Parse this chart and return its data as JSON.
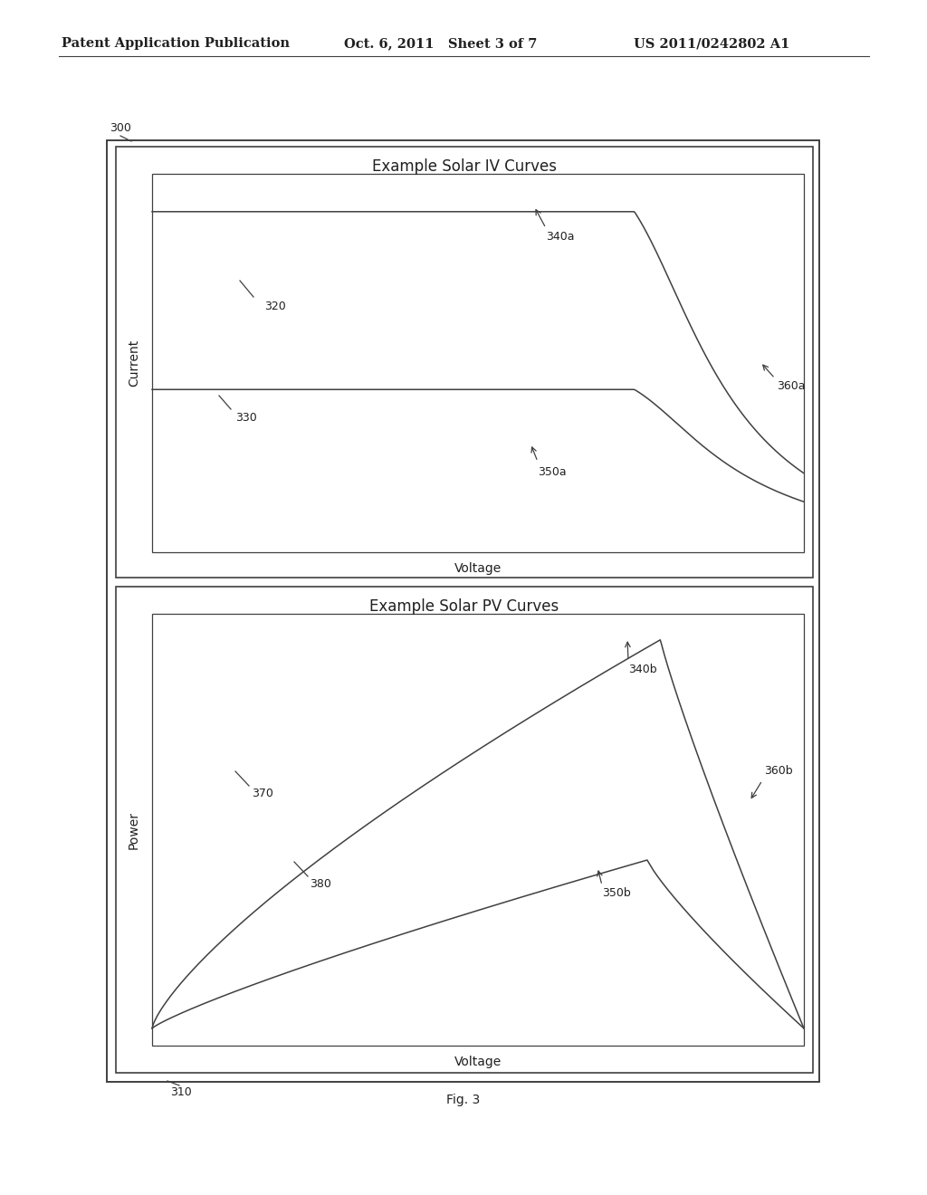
{
  "header_left": "Patent Application Publication",
  "header_center": "Oct. 6, 2011   Sheet 3 of 7",
  "header_right": "US 2011/0242802 A1",
  "fig_label": "Fig. 3",
  "label_300": "300",
  "label_310": "310",
  "iv_title": "Example Solar IV Curves",
  "pv_title": "Example Solar PV Curves",
  "iv_ylabel": "Current",
  "pv_ylabel": "Power",
  "iv_xlabel": "Voltage",
  "pv_xlabel": "Voltage",
  "label_320": "320",
  "label_330": "330",
  "label_340a": "340a",
  "label_350a": "350a",
  "label_360a": "360a",
  "label_340b": "340b",
  "label_350b": "350b",
  "label_360b": "360b",
  "label_370": "370",
  "label_380": "380",
  "bg_color": "#ffffff",
  "line_color": "#404040",
  "text_color": "#202020"
}
